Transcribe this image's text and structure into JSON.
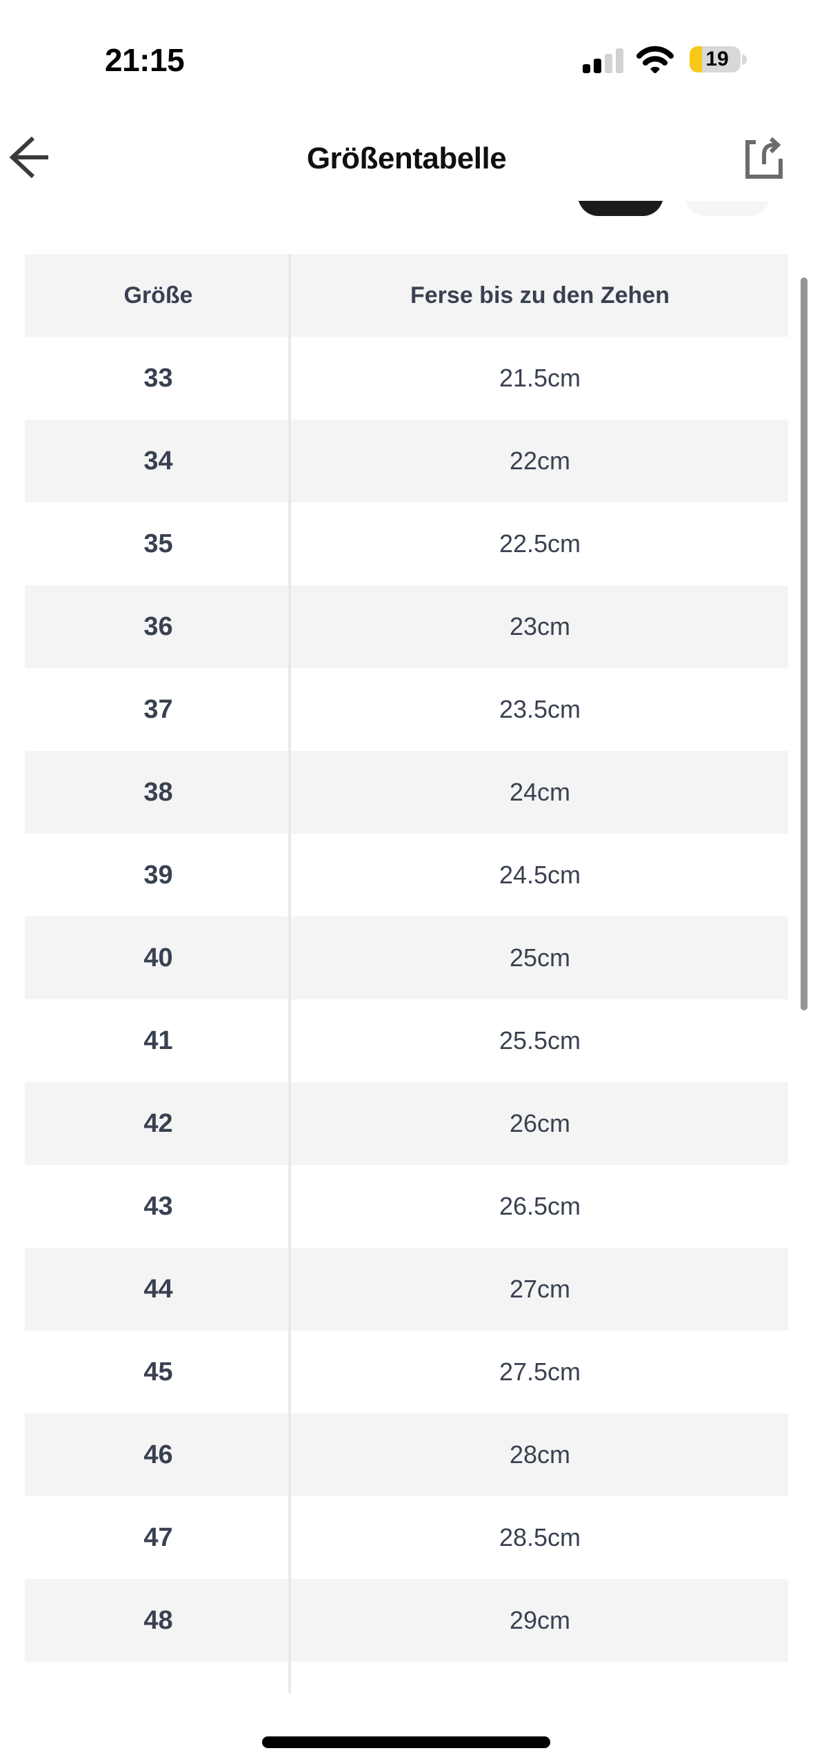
{
  "status_bar": {
    "time": "21:15",
    "battery_percent": "19",
    "cellular_bars_active": 2,
    "cellular_bars_total": 4,
    "icons": [
      "cellular-signal",
      "wifi",
      "battery-low-power"
    ]
  },
  "header": {
    "title": "Größentabelle",
    "back_icon": "arrow-left",
    "share_icon": "share-arrow-out-of-box"
  },
  "unit_toggle": {
    "pills": [
      "dark-selected-pill",
      "light-unselected-pill"
    ]
  },
  "table": {
    "columns": [
      "Größe",
      "Ferse bis zu den Zehen"
    ],
    "rows": [
      {
        "size": "33",
        "length": "21.5cm"
      },
      {
        "size": "34",
        "length": "22cm"
      },
      {
        "size": "35",
        "length": "22.5cm"
      },
      {
        "size": "36",
        "length": "23cm"
      },
      {
        "size": "37",
        "length": "23.5cm"
      },
      {
        "size": "38",
        "length": "24cm"
      },
      {
        "size": "39",
        "length": "24.5cm"
      },
      {
        "size": "40",
        "length": "25cm"
      },
      {
        "size": "41",
        "length": "25.5cm"
      },
      {
        "size": "42",
        "length": "26cm"
      },
      {
        "size": "43",
        "length": "26.5cm"
      },
      {
        "size": "44",
        "length": "27cm"
      },
      {
        "size": "45",
        "length": "27.5cm"
      },
      {
        "size": "46",
        "length": "28cm"
      },
      {
        "size": "47",
        "length": "28.5cm"
      },
      {
        "size": "48",
        "length": "29cm"
      }
    ]
  },
  "colors": {
    "text_dark_slate": "#394150",
    "row_alt_gray": "#f4f4f5",
    "battery_yellow": "#f7c815",
    "battery_body": "#d8d8d8",
    "pill_dark": "#1b1b1d",
    "pill_light": "#f5f5f6",
    "inactive_bar_gray": "#d2d2d2"
  }
}
